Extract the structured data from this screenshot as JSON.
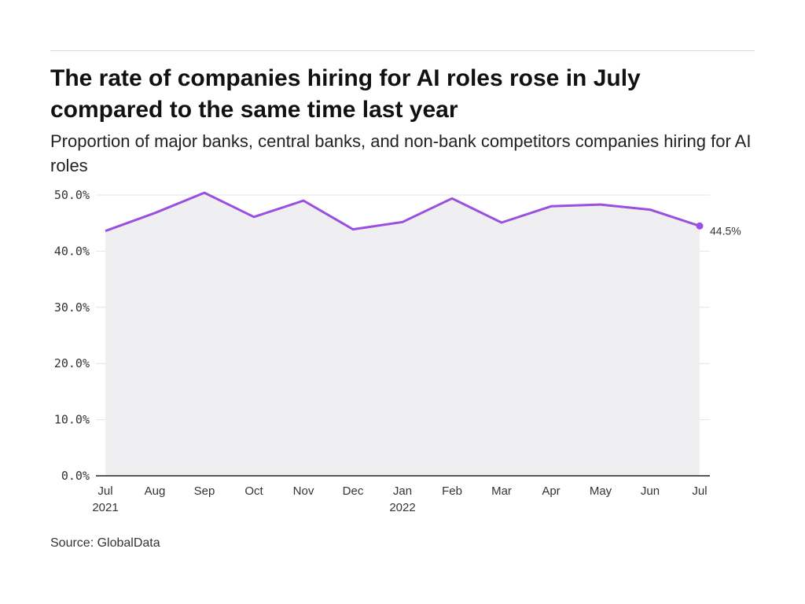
{
  "header": {
    "title": "The rate of companies hiring for AI roles rose in July compared to the same time last year",
    "subtitle": "Proportion of major banks, central banks, and non-bank competitors companies hiring for AI roles"
  },
  "footer": {
    "source": "Source: GlobalData"
  },
  "colors": {
    "line": "#9b4fe0",
    "area": "#efeff1",
    "grid": "#e4e4e4",
    "axis": "#222222"
  },
  "chart_data": {
    "type": "area",
    "title": "The rate of companies hiring for AI roles rose in July compared to the same time last year",
    "subtitle": "Proportion of major banks, central banks, and non-bank competitors companies hiring for AI roles",
    "xlabel": "",
    "ylabel": "",
    "categories": [
      "Jul 2021",
      "Aug 2021",
      "Sep 2021",
      "Oct 2021",
      "Nov 2021",
      "Dec 2021",
      "Jan 2022",
      "Feb 2022",
      "Mar 2022",
      "Apr 2022",
      "May 2022",
      "Jun 2022",
      "Jul 2022"
    ],
    "x_tick_labels": [
      {
        "line1": "Jul",
        "line2": "2021"
      },
      {
        "line1": "Aug",
        "line2": ""
      },
      {
        "line1": "Sep",
        "line2": ""
      },
      {
        "line1": "Oct",
        "line2": ""
      },
      {
        "line1": "Nov",
        "line2": ""
      },
      {
        "line1": "Dec",
        "line2": ""
      },
      {
        "line1": "Jan",
        "line2": "2022"
      },
      {
        "line1": "Feb",
        "line2": ""
      },
      {
        "line1": "Mar",
        "line2": ""
      },
      {
        "line1": "Apr",
        "line2": ""
      },
      {
        "line1": "May",
        "line2": ""
      },
      {
        "line1": "Jun",
        "line2": ""
      },
      {
        "line1": "Jul",
        "line2": ""
      }
    ],
    "values": [
      43.6,
      46.8,
      50.4,
      46.1,
      49.0,
      43.9,
      45.2,
      49.4,
      45.1,
      48.0,
      48.3,
      47.4,
      44.5
    ],
    "y_ticks": [
      "0.0%",
      "10.0%",
      "20.0%",
      "30.0%",
      "40.0%",
      "50.0%"
    ],
    "y_tick_values": [
      0,
      10,
      20,
      30,
      40,
      50
    ],
    "ylim": [
      0,
      50
    ],
    "grid": true,
    "last_point_label": "44.5%",
    "source": "Source: GlobalData"
  }
}
